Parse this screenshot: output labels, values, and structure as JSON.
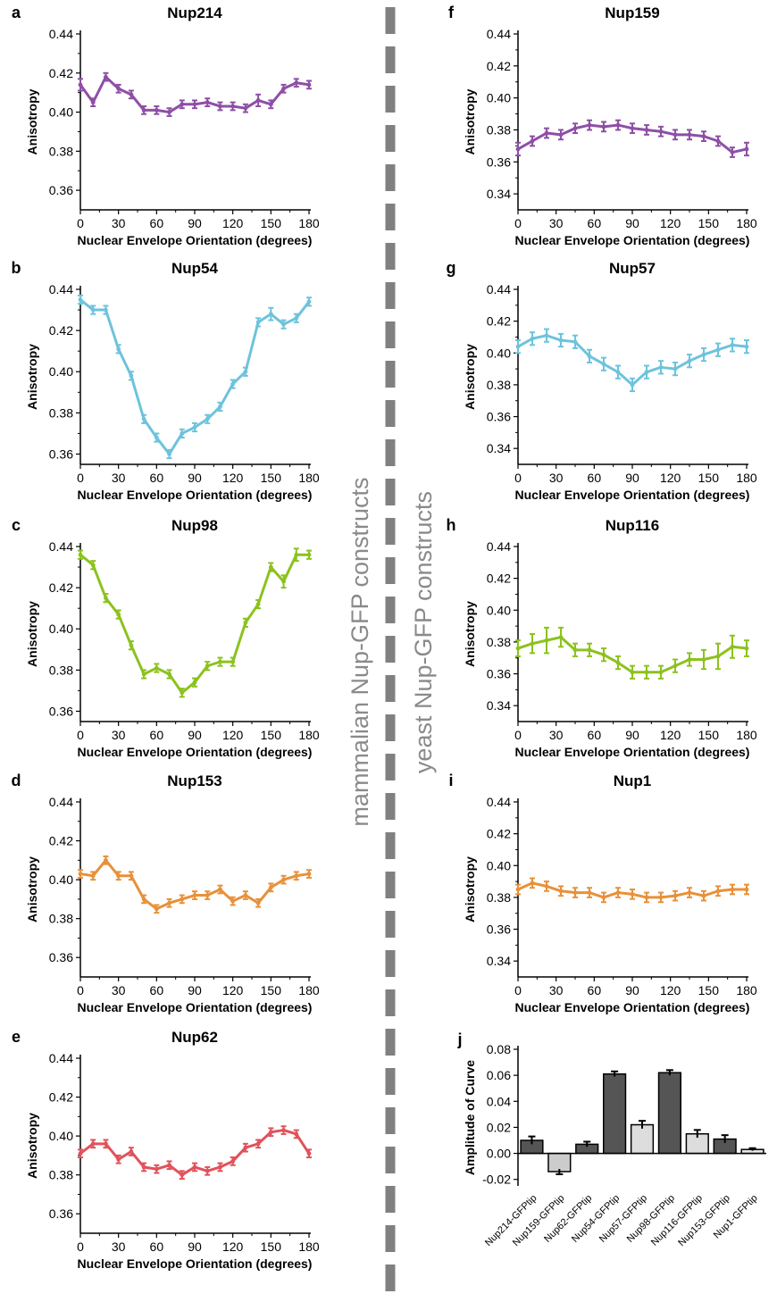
{
  "figure": {
    "divider_color": "#808080",
    "left_group_label": "mammalian Nup-GFP constructs",
    "right_group_label": "yeast Nup-GFP constructs"
  },
  "chart_data": [
    {
      "panel": "a",
      "type": "line",
      "title": "Nup214",
      "color": "#8E4FA6",
      "xlabel": "Nuclear Envelope Orientation (degrees)",
      "ylabel": "Anisotropy",
      "xlim": [
        0,
        180
      ],
      "xticks": [
        0,
        30,
        60,
        90,
        120,
        150,
        180
      ],
      "ylim": [
        0.35,
        0.44
      ],
      "yticks": [
        0.36,
        0.38,
        0.4,
        0.42,
        0.44
      ],
      "x": [
        0,
        10,
        20,
        30,
        40,
        50,
        60,
        70,
        80,
        90,
        100,
        110,
        120,
        130,
        140,
        150,
        160,
        170,
        180
      ],
      "values": [
        0.414,
        0.405,
        0.418,
        0.412,
        0.409,
        0.401,
        0.401,
        0.4,
        0.404,
        0.404,
        0.405,
        0.403,
        0.403,
        0.402,
        0.406,
        0.404,
        0.412,
        0.415,
        0.414
      ],
      "errors": [
        0.003,
        0.002,
        0.002,
        0.002,
        0.002,
        0.002,
        0.002,
        0.002,
        0.002,
        0.002,
        0.002,
        0.002,
        0.002,
        0.002,
        0.003,
        0.002,
        0.002,
        0.002,
        0.002
      ]
    },
    {
      "panel": "b",
      "type": "line",
      "title": "Nup54",
      "color": "#6EC3DC",
      "xlabel": "Nuclear Envelope Orientation (degrees)",
      "ylabel": "Anisotropy",
      "xlim": [
        0,
        180
      ],
      "xticks": [
        0,
        30,
        60,
        90,
        120,
        150,
        180
      ],
      "ylim": [
        0.355,
        0.44
      ],
      "yticks": [
        0.36,
        0.38,
        0.4,
        0.42,
        0.44
      ],
      "x": [
        0,
        10,
        20,
        30,
        40,
        50,
        60,
        70,
        80,
        90,
        100,
        110,
        120,
        130,
        140,
        150,
        160,
        170,
        180
      ],
      "values": [
        0.435,
        0.43,
        0.43,
        0.411,
        0.398,
        0.377,
        0.368,
        0.36,
        0.37,
        0.373,
        0.377,
        0.383,
        0.394,
        0.4,
        0.424,
        0.428,
        0.423,
        0.426,
        0.434
      ],
      "errors": [
        0.002,
        0.002,
        0.002,
        0.002,
        0.002,
        0.002,
        0.002,
        0.002,
        0.002,
        0.002,
        0.002,
        0.002,
        0.002,
        0.002,
        0.002,
        0.003,
        0.002,
        0.002,
        0.002
      ]
    },
    {
      "panel": "c",
      "type": "line",
      "title": "Nup98",
      "color": "#8CC21E",
      "xlabel": "Nuclear Envelope Orientation (degrees)",
      "ylabel": "Anisotropy",
      "xlim": [
        0,
        180
      ],
      "xticks": [
        0,
        30,
        60,
        90,
        120,
        150,
        180
      ],
      "ylim": [
        0.355,
        0.44
      ],
      "yticks": [
        0.36,
        0.38,
        0.4,
        0.42,
        0.44
      ],
      "x": [
        0,
        10,
        20,
        30,
        40,
        50,
        60,
        70,
        80,
        90,
        100,
        110,
        120,
        130,
        140,
        150,
        160,
        170,
        180
      ],
      "values": [
        0.436,
        0.431,
        0.415,
        0.407,
        0.392,
        0.378,
        0.381,
        0.378,
        0.369,
        0.374,
        0.382,
        0.384,
        0.384,
        0.403,
        0.412,
        0.43,
        0.423,
        0.436,
        0.436
      ],
      "errors": [
        0.002,
        0.002,
        0.002,
        0.002,
        0.002,
        0.002,
        0.002,
        0.002,
        0.002,
        0.002,
        0.002,
        0.002,
        0.002,
        0.002,
        0.002,
        0.002,
        0.003,
        0.003,
        0.002
      ]
    },
    {
      "panel": "d",
      "type": "line",
      "title": "Nup153",
      "color": "#E8913A",
      "xlabel": "Nuclear Envelope Orientation (degrees)",
      "ylabel": "Anisotropy",
      "xlim": [
        0,
        180
      ],
      "xticks": [
        0,
        30,
        60,
        90,
        120,
        150,
        180
      ],
      "ylim": [
        0.35,
        0.44
      ],
      "yticks": [
        0.36,
        0.38,
        0.4,
        0.42,
        0.44
      ],
      "x": [
        0,
        10,
        20,
        30,
        40,
        50,
        60,
        70,
        80,
        90,
        100,
        110,
        120,
        130,
        140,
        150,
        160,
        170,
        180
      ],
      "values": [
        0.403,
        0.402,
        0.41,
        0.402,
        0.402,
        0.39,
        0.385,
        0.388,
        0.39,
        0.392,
        0.392,
        0.395,
        0.389,
        0.392,
        0.388,
        0.396,
        0.4,
        0.402,
        0.403
      ],
      "errors": [
        0.002,
        0.002,
        0.002,
        0.002,
        0.002,
        0.002,
        0.002,
        0.002,
        0.002,
        0.002,
        0.002,
        0.002,
        0.002,
        0.002,
        0.002,
        0.002,
        0.002,
        0.002,
        0.002
      ]
    },
    {
      "panel": "e",
      "type": "line",
      "title": "Nup62",
      "color": "#E0535B",
      "xlabel": "Nuclear Envelope Orientation (degrees)",
      "ylabel": "Anisotropy",
      "xlim": [
        0,
        180
      ],
      "xticks": [
        0,
        30,
        60,
        90,
        120,
        150,
        180
      ],
      "ylim": [
        0.35,
        0.44
      ],
      "yticks": [
        0.36,
        0.38,
        0.4,
        0.42,
        0.44
      ],
      "x": [
        0,
        10,
        20,
        30,
        40,
        50,
        60,
        70,
        80,
        90,
        100,
        110,
        120,
        130,
        140,
        150,
        160,
        170,
        180
      ],
      "values": [
        0.391,
        0.396,
        0.396,
        0.388,
        0.392,
        0.384,
        0.383,
        0.385,
        0.38,
        0.384,
        0.382,
        0.384,
        0.387,
        0.394,
        0.396,
        0.402,
        0.403,
        0.401,
        0.391
      ],
      "errors": [
        0.002,
        0.002,
        0.002,
        0.002,
        0.002,
        0.002,
        0.002,
        0.002,
        0.002,
        0.002,
        0.002,
        0.002,
        0.002,
        0.002,
        0.002,
        0.002,
        0.002,
        0.002,
        0.002
      ]
    },
    {
      "panel": "f",
      "type": "line",
      "title": "Nup159",
      "color": "#8E4FA6",
      "xlabel": "Nuclear Envelope Orientation (degrees)",
      "ylabel": "Anisotropy",
      "xlim": [
        0,
        180
      ],
      "xticks": [
        0,
        30,
        60,
        90,
        120,
        150,
        180
      ],
      "ylim": [
        0.33,
        0.44
      ],
      "yticks": [
        0.34,
        0.36,
        0.38,
        0.4,
        0.42,
        0.44
      ],
      "x": [
        0,
        11.25,
        22.5,
        33.75,
        45,
        56.25,
        67.5,
        78.75,
        90,
        101.25,
        112.5,
        123.75,
        135,
        146.25,
        157.5,
        168.75,
        180
      ],
      "values": [
        0.368,
        0.373,
        0.378,
        0.377,
        0.381,
        0.383,
        0.382,
        0.383,
        0.381,
        0.38,
        0.379,
        0.377,
        0.377,
        0.376,
        0.373,
        0.366,
        0.368
      ],
      "errors": [
        0.004,
        0.003,
        0.003,
        0.003,
        0.003,
        0.003,
        0.003,
        0.003,
        0.003,
        0.003,
        0.003,
        0.003,
        0.003,
        0.003,
        0.003,
        0.003,
        0.004
      ]
    },
    {
      "panel": "g",
      "type": "line",
      "title": "Nup57",
      "color": "#6EC3DC",
      "xlabel": "Nuclear Envelope Orientation (degrees)",
      "ylabel": "Anisotropy",
      "xlim": [
        0,
        180
      ],
      "xticks": [
        0,
        30,
        60,
        90,
        120,
        150,
        180
      ],
      "ylim": [
        0.33,
        0.44
      ],
      "yticks": [
        0.34,
        0.36,
        0.38,
        0.4,
        0.42,
        0.44
      ],
      "x": [
        0,
        11.25,
        22.5,
        33.75,
        45,
        56.25,
        67.5,
        78.75,
        90,
        101.25,
        112.5,
        123.75,
        135,
        146.25,
        157.5,
        168.75,
        180
      ],
      "values": [
        0.404,
        0.409,
        0.411,
        0.408,
        0.407,
        0.398,
        0.393,
        0.388,
        0.38,
        0.388,
        0.391,
        0.39,
        0.395,
        0.399,
        0.402,
        0.405,
        0.404
      ],
      "errors": [
        0.004,
        0.004,
        0.004,
        0.004,
        0.004,
        0.004,
        0.004,
        0.004,
        0.004,
        0.004,
        0.004,
        0.004,
        0.004,
        0.004,
        0.004,
        0.004,
        0.004
      ]
    },
    {
      "panel": "h",
      "type": "line",
      "title": "Nup116",
      "color": "#8CC21E",
      "xlabel": "Nuclear Envelope Orientation (degrees)",
      "ylabel": "Anisotropy",
      "xlim": [
        0,
        180
      ],
      "xticks": [
        0,
        30,
        60,
        90,
        120,
        150,
        180
      ],
      "ylim": [
        0.33,
        0.44
      ],
      "yticks": [
        0.34,
        0.36,
        0.38,
        0.4,
        0.42,
        0.44
      ],
      "x": [
        0,
        11.25,
        22.5,
        33.75,
        45,
        56.25,
        67.5,
        78.75,
        90,
        101.25,
        112.5,
        123.75,
        135,
        146.25,
        157.5,
        168.75,
        180
      ],
      "values": [
        0.376,
        0.379,
        0.381,
        0.383,
        0.375,
        0.375,
        0.372,
        0.367,
        0.361,
        0.361,
        0.361,
        0.365,
        0.369,
        0.369,
        0.371,
        0.377,
        0.376
      ],
      "errors": [
        0.005,
        0.006,
        0.008,
        0.006,
        0.004,
        0.004,
        0.004,
        0.004,
        0.004,
        0.004,
        0.004,
        0.004,
        0.004,
        0.006,
        0.008,
        0.007,
        0.005
      ]
    },
    {
      "panel": "i",
      "type": "line",
      "title": "Nup1",
      "color": "#E8913A",
      "xlabel": "Nuclear Envelope Orientation (degrees)",
      "ylabel": "Anisotropy",
      "xlim": [
        0,
        180
      ],
      "xticks": [
        0,
        30,
        60,
        90,
        120,
        150,
        180
      ],
      "ylim": [
        0.33,
        0.44
      ],
      "yticks": [
        0.34,
        0.36,
        0.38,
        0.4,
        0.42,
        0.44
      ],
      "x": [
        0,
        11.25,
        22.5,
        33.75,
        45,
        56.25,
        67.5,
        78.75,
        90,
        101.25,
        112.5,
        123.75,
        135,
        146.25,
        157.5,
        168.75,
        180
      ],
      "values": [
        0.385,
        0.389,
        0.387,
        0.384,
        0.383,
        0.383,
        0.38,
        0.383,
        0.382,
        0.38,
        0.38,
        0.381,
        0.383,
        0.381,
        0.384,
        0.385,
        0.385
      ],
      "errors": [
        0.003,
        0.003,
        0.003,
        0.003,
        0.003,
        0.003,
        0.003,
        0.003,
        0.003,
        0.003,
        0.003,
        0.003,
        0.003,
        0.003,
        0.003,
        0.003,
        0.003
      ]
    },
    {
      "panel": "j",
      "type": "bar",
      "title": "",
      "xlabel": "",
      "ylabel": "Amplitude of Curve",
      "ylim": [
        -0.025,
        0.08
      ],
      "yticks": [
        -0.02,
        0.0,
        0.02,
        0.04,
        0.06,
        0.08
      ],
      "categories": [
        "Nup214-GFPtip",
        "Nup159-GFPtip",
        "Nup62-GFPtip",
        "Nup54-GFPtip",
        "Nup57-GFPtip",
        "Nup98-GFPtip",
        "Nup116-GFPtip",
        "Nup153-GFPtip",
        "Nup1-GFPtip"
      ],
      "values": [
        0.01,
        -0.014,
        0.007,
        0.061,
        0.022,
        0.062,
        0.015,
        0.011,
        0.003
      ],
      "errors": [
        0.003,
        0.002,
        0.002,
        0.002,
        0.003,
        0.002,
        0.003,
        0.003,
        0.001
      ],
      "bar_colors": [
        "#555555",
        "#cccccc",
        "#555555",
        "#555555",
        "#dddddd",
        "#555555",
        "#dddddd",
        "#555555",
        "#e6e6e6"
      ]
    }
  ]
}
